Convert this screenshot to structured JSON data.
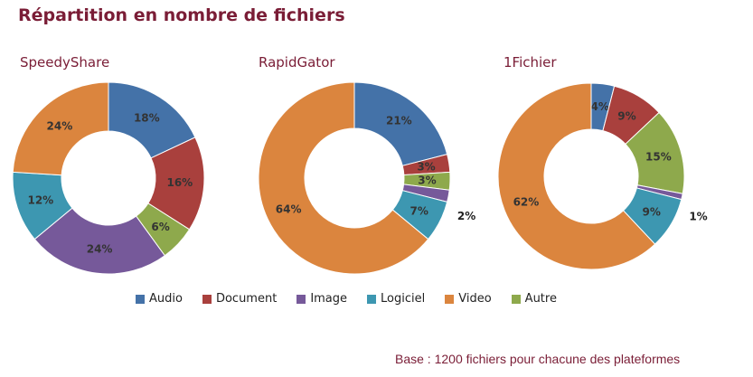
{
  "title": "Répartition en nombre de fichiers",
  "footnote": "Base : 1200 fichiers pour chacune des plateformes",
  "legend_placement": "bottom",
  "colors": {
    "Audio": "#4472a8",
    "Document": "#a9403d",
    "Image": "#76599a",
    "Logiciel": "#3d97b1",
    "Video": "#db853e",
    "Autre": "#8ea94c"
  },
  "legend": [
    "Audio",
    "Document",
    "Image",
    "Logiciel",
    "Video",
    "Autre"
  ],
  "chart_data": [
    {
      "type": "pie",
      "title": "SpeedyShare",
      "categories": [
        "Audio",
        "Document",
        "Autre",
        "Image",
        "Logiciel",
        "Video"
      ],
      "values": [
        18,
        16,
        6,
        24,
        12,
        24
      ],
      "labels": [
        "18%",
        "16%",
        "6%",
        "24%",
        "12%",
        "24%"
      ]
    },
    {
      "type": "pie",
      "title": "RapidGator",
      "categories": [
        "Audio",
        "Document",
        "Autre",
        "Image",
        "Logiciel",
        "Video"
      ],
      "values": [
        21,
        3,
        3,
        2,
        7,
        64
      ],
      "labels": [
        "21%",
        "3%",
        "3%",
        "2%",
        "7%",
        "64%"
      ]
    },
    {
      "type": "pie",
      "title": "1Fichier",
      "categories": [
        "Audio",
        "Document",
        "Autre",
        "Image",
        "Logiciel",
        "Video"
      ],
      "values": [
        4,
        9,
        15,
        1,
        9,
        62
      ],
      "labels": [
        "4%",
        "9%",
        "15%",
        "1%",
        "9%",
        "62%"
      ]
    }
  ]
}
